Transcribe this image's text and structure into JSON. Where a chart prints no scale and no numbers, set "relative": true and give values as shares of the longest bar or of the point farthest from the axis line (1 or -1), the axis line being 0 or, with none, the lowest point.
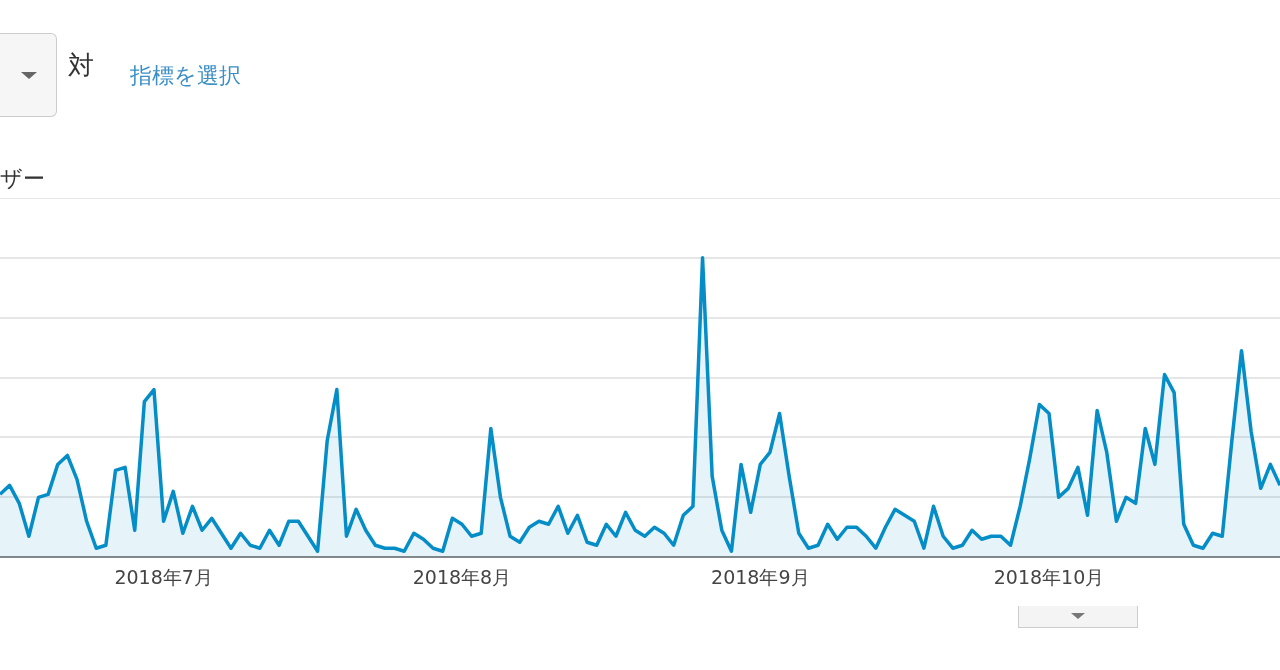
{
  "chart_data": {
    "type": "area",
    "relative": true,
    "ylabel": "ザー",
    "annotations": [
      "対",
      "指標を選択"
    ],
    "x": [
      "2018-06-14",
      "2018-06-15",
      "2018-06-16",
      "2018-06-17",
      "2018-06-18",
      "2018-06-19",
      "2018-06-20",
      "2018-06-21",
      "2018-06-22",
      "2018-06-23",
      "2018-06-24",
      "2018-06-25",
      "2018-06-26",
      "2018-06-27",
      "2018-06-28",
      "2018-06-29",
      "2018-06-30",
      "2018-07-01",
      "2018-07-02",
      "2018-07-03",
      "2018-07-04",
      "2018-07-05",
      "2018-07-06",
      "2018-07-07",
      "2018-07-08",
      "2018-07-09",
      "2018-07-10",
      "2018-07-11",
      "2018-07-12",
      "2018-07-13",
      "2018-07-14",
      "2018-07-15",
      "2018-07-16",
      "2018-07-17",
      "2018-07-18",
      "2018-07-19",
      "2018-07-20",
      "2018-07-21",
      "2018-07-22",
      "2018-07-23",
      "2018-07-24",
      "2018-07-25",
      "2018-07-26",
      "2018-07-27",
      "2018-07-28",
      "2018-07-29",
      "2018-07-30",
      "2018-07-31",
      "2018-08-01",
      "2018-08-02",
      "2018-08-03",
      "2018-08-04",
      "2018-08-05",
      "2018-08-06",
      "2018-08-07",
      "2018-08-08",
      "2018-08-09",
      "2018-08-10",
      "2018-08-11",
      "2018-08-12",
      "2018-08-13",
      "2018-08-14",
      "2018-08-15",
      "2018-08-16",
      "2018-08-17",
      "2018-08-18",
      "2018-08-19",
      "2018-08-20",
      "2018-08-21",
      "2018-08-22",
      "2018-08-23",
      "2018-08-24",
      "2018-08-25",
      "2018-08-26",
      "2018-08-27",
      "2018-08-28",
      "2018-08-29",
      "2018-08-30",
      "2018-08-31",
      "2018-09-01",
      "2018-09-02",
      "2018-09-03",
      "2018-09-04",
      "2018-09-05",
      "2018-09-06",
      "2018-09-07",
      "2018-09-08",
      "2018-09-09",
      "2018-09-10",
      "2018-09-11",
      "2018-09-12",
      "2018-09-13",
      "2018-09-14",
      "2018-09-15",
      "2018-09-16",
      "2018-09-17",
      "2018-09-18",
      "2018-09-19",
      "2018-09-20",
      "2018-09-21",
      "2018-09-22",
      "2018-09-23",
      "2018-09-24",
      "2018-09-25",
      "2018-09-26",
      "2018-09-27",
      "2018-09-28",
      "2018-09-29",
      "2018-09-30",
      "2018-10-01",
      "2018-10-02",
      "2018-10-03",
      "2018-10-04",
      "2018-10-05",
      "2018-10-06",
      "2018-10-07",
      "2018-10-08",
      "2018-10-09",
      "2018-10-10",
      "2018-10-11",
      "2018-10-12",
      "2018-10-13",
      "2018-10-14",
      "2018-10-15",
      "2018-10-16",
      "2018-10-17",
      "2018-10-18",
      "2018-10-19",
      "2018-10-20",
      "2018-10-21",
      "2018-10-22",
      "2018-10-23",
      "2018-10-24",
      "2018-10-25"
    ],
    "xlim": [
      "2018-06-14",
      "2018-10-25"
    ],
    "xticks": [
      {
        "value": "2018-07-01",
        "label": "2018年7月"
      },
      {
        "value": "2018-08-01",
        "label": "2018年8月"
      },
      {
        "value": "2018-09-01",
        "label": "2018年9月"
      },
      {
        "value": "2018-10-01",
        "label": "2018年10月"
      }
    ],
    "series": [
      {
        "color": "#058dc7",
        "values": [
          0.21,
          0.24,
          0.18,
          0.07,
          0.2,
          0.21,
          0.31,
          0.34,
          0.26,
          0.12,
          0.03,
          0.04,
          0.29,
          0.3,
          0.09,
          0.52,
          0.56,
          0.12,
          0.22,
          0.08,
          0.17,
          0.09,
          0.13,
          0.08,
          0.03,
          0.08,
          0.04,
          0.03,
          0.09,
          0.04,
          0.12,
          0.12,
          0.07,
          0.02,
          0.39,
          0.56,
          0.07,
          0.16,
          0.09,
          0.04,
          0.03,
          0.03,
          0.02,
          0.08,
          0.06,
          0.03,
          0.02,
          0.13,
          0.11,
          0.07,
          0.08,
          0.43,
          0.2,
          0.07,
          0.05,
          0.1,
          0.12,
          0.11,
          0.17,
          0.08,
          0.14,
          0.05,
          0.04,
          0.11,
          0.07,
          0.15,
          0.09,
          0.07,
          0.1,
          0.08,
          0.04,
          0.14,
          0.17,
          1,
          0.27,
          0.09,
          0.02,
          0.31,
          0.15,
          0.31,
          0.35,
          0.48,
          0.27,
          0.08,
          0.03,
          0.04,
          0.11,
          0.06,
          0.1,
          0.1,
          0.07,
          0.03,
          0.1,
          0.16,
          0.14,
          0.12,
          0.03,
          0.17,
          0.07,
          0.03,
          0.04,
          0.09,
          0.06,
          0.07,
          0.07,
          0.04,
          0.17,
          0.33,
          0.51,
          0.48,
          0.2,
          0.23,
          0.3,
          0.14,
          0.49,
          0.35,
          0.12,
          0.2,
          0.18,
          0.43,
          0.31,
          0.61,
          0.55,
          0.11,
          0.04,
          0.03,
          0.08,
          0.07,
          0.39,
          0.69,
          0.42,
          0.23,
          0.31,
          0.24
        ]
      }
    ],
    "grid": "y",
    "marker": "none",
    "line_style": "solid",
    "legend": false
  }
}
